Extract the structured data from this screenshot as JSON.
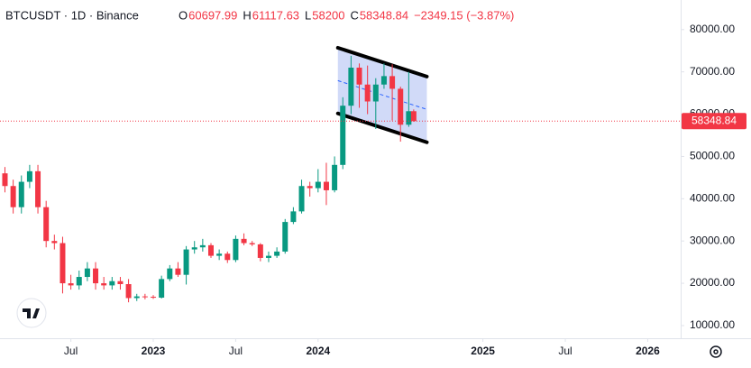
{
  "chart_data": {
    "type": "candlestick",
    "symbol": "BTCUSDT · 1D · Binance",
    "header": {
      "open_label": "O",
      "open": 60697.99,
      "high_label": "H",
      "high": 61117.63,
      "low_label": "L",
      "low": 58200.0,
      "close_label": "C",
      "close": 58348.84,
      "change": "−2349.15 (−3.87%)"
    },
    "up_color": "#089981",
    "down_color": "#f23645",
    "x": [
      2022.1,
      2022.15,
      2022.2,
      2022.25,
      2022.3,
      2022.35,
      2022.4,
      2022.45,
      2022.5,
      2022.55,
      2022.6,
      2022.65,
      2022.7,
      2022.75,
      2022.8,
      2022.85,
      2022.9,
      2022.95,
      2023.0,
      2023.05,
      2023.1,
      2023.15,
      2023.2,
      2023.25,
      2023.3,
      2023.35,
      2023.4,
      2023.45,
      2023.5,
      2023.55,
      2023.6,
      2023.65,
      2023.7,
      2023.75,
      2023.8,
      2023.85,
      2023.9,
      2023.95,
      2024.0,
      2024.05,
      2024.1,
      2024.15,
      2024.2,
      2024.25,
      2024.3,
      2024.35,
      2024.4,
      2024.45,
      2024.5,
      2024.55,
      2024.58
    ],
    "open": [
      46000,
      43000,
      38000,
      44000,
      46500,
      38000,
      30000,
      29500,
      20000,
      19500,
      21500,
      23500,
      20000,
      19500,
      20500,
      19800,
      16500,
      16900,
      16800,
      16600,
      21000,
      23500,
      22000,
      28000,
      28500,
      29000,
      26500,
      27000,
      25500,
      30500,
      29500,
      29200,
      26000,
      26500,
      27500,
      34500,
      37000,
      43000,
      42500,
      44000,
      42000,
      48000,
      62000,
      71000,
      67000,
      63000,
      67000,
      69000,
      66000,
      57500,
      60697.99
    ],
    "high": [
      47500,
      44500,
      45500,
      48000,
      48000,
      39500,
      31500,
      31000,
      22000,
      23000,
      25000,
      25000,
      21500,
      21500,
      21500,
      21000,
      17500,
      17500,
      17200,
      21800,
      24300,
      25000,
      28800,
      30000,
      30500,
      29500,
      28000,
      27500,
      31300,
      31800,
      30000,
      29500,
      27500,
      28500,
      35200,
      38000,
      44500,
      44000,
      47000,
      48500,
      50000,
      64000,
      73800,
      72000,
      71500,
      68500,
      72000,
      71800,
      66500,
      70000,
      61117.63
    ],
    "low": [
      41500,
      36500,
      36500,
      42500,
      36500,
      28500,
      28000,
      17600,
      18500,
      18500,
      20500,
      18500,
      18500,
      18500,
      18500,
      15500,
      15800,
      16200,
      16300,
      16400,
      20500,
      21500,
      19700,
      27000,
      27500,
      26000,
      25500,
      24800,
      25000,
      29000,
      28800,
      25200,
      25000,
      26000,
      27000,
      34000,
      36500,
      40500,
      41500,
      38500,
      41500,
      47000,
      60000,
      61500,
      60000,
      56500,
      66000,
      58500,
      53500,
      57000,
      58200
    ],
    "close": [
      43000,
      38000,
      44000,
      46500,
      38000,
      30000,
      29500,
      20000,
      19500,
      21500,
      23500,
      20000,
      19500,
      20500,
      19800,
      16500,
      16900,
      16800,
      16600,
      21000,
      23500,
      22000,
      28000,
      28500,
      29000,
      26500,
      27000,
      25500,
      30500,
      29500,
      29200,
      26000,
      26500,
      27500,
      34500,
      37000,
      43000,
      42500,
      44000,
      42000,
      48000,
      62000,
      71000,
      67000,
      63000,
      67000,
      69000,
      66000,
      57500,
      60697.99,
      58348.84
    ],
    "channel": {
      "upper": [
        [
          2024.12,
          75700
        ],
        [
          2024.66,
          68900
        ]
      ],
      "lower": [
        [
          2024.12,
          60170
        ],
        [
          2024.66,
          53350
        ]
      ],
      "color": "#000000",
      "fill": "#c9d3f7"
    },
    "xlim": [
      2022.07,
      2026.2
    ],
    "ylim": [
      7000,
      87000
    ],
    "xticks": [
      {
        "value": 2022.5,
        "label": "Jul"
      },
      2023,
      {
        "value": 2023.5,
        "label": "Jul"
      },
      2024,
      2025,
      {
        "value": 2025.5,
        "label": "Jul"
      },
      2026
    ],
    "yticks": [
      {
        "value": 10000,
        "label": "10000.00"
      },
      {
        "value": 20000,
        "label": "20000.00"
      },
      {
        "value": 30000,
        "label": "30000.00"
      },
      {
        "value": 40000,
        "label": "40000.00"
      },
      {
        "value": 50000,
        "label": "50000.00"
      },
      {
        "value": 60000,
        "label": "60000.00"
      },
      {
        "value": 70000,
        "label": "70000.00"
      },
      {
        "value": 80000,
        "label": "80000.00"
      }
    ]
  }
}
